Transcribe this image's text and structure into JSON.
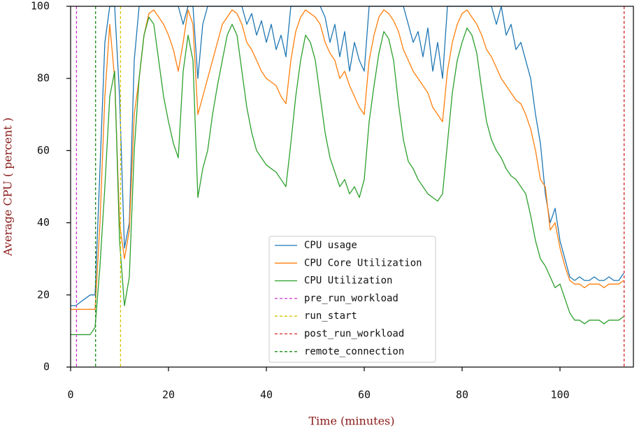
{
  "chart_data": {
    "type": "line",
    "x_label": "Time (minutes)",
    "y_label": "Average CPU ( percent )",
    "xlim": [
      0,
      115
    ],
    "ylim": [
      0,
      100
    ],
    "xticks": [
      0,
      20,
      40,
      60,
      80,
      100
    ],
    "yticks": [
      0,
      20,
      40,
      60,
      80,
      100
    ],
    "legend": "lower center",
    "x": [
      0,
      1,
      2,
      3,
      4,
      5,
      6,
      7,
      8,
      9,
      10,
      11,
      12,
      13,
      14,
      15,
      16,
      17,
      18,
      19,
      20,
      21,
      22,
      23,
      24,
      25,
      26,
      27,
      28,
      29,
      30,
      31,
      32,
      33,
      34,
      35,
      36,
      37,
      38,
      39,
      40,
      41,
      42,
      43,
      44,
      45,
      46,
      47,
      48,
      49,
      50,
      51,
      52,
      53,
      54,
      55,
      56,
      57,
      58,
      59,
      60,
      61,
      62,
      63,
      64,
      65,
      66,
      67,
      68,
      69,
      70,
      71,
      72,
      73,
      74,
      75,
      76,
      77,
      78,
      79,
      80,
      81,
      82,
      83,
      84,
      85,
      86,
      87,
      88,
      89,
      90,
      91,
      92,
      93,
      94,
      95,
      96,
      97,
      98,
      99,
      100,
      101,
      102,
      103,
      104,
      105,
      106,
      107,
      108,
      109,
      110,
      111,
      112,
      113
    ],
    "series": [
      {
        "name": "CPU usage",
        "color": "#1f77b4",
        "values": [
          17,
          17,
          18,
          19,
          20,
          20,
          55,
          90,
          100,
          100,
          75,
          33,
          40,
          85,
          100,
          100,
          100,
          100,
          100,
          100,
          100,
          100,
          100,
          95,
          100,
          100,
          80,
          95,
          100,
          100,
          100,
          100,
          100,
          100,
          100,
          100,
          95,
          98,
          92,
          96,
          90,
          95,
          88,
          92,
          86,
          100,
          100,
          100,
          100,
          100,
          100,
          100,
          97,
          90,
          95,
          86,
          93,
          82,
          90,
          85,
          82,
          100,
          100,
          100,
          100,
          100,
          100,
          100,
          100,
          95,
          90,
          93,
          86,
          94,
          82,
          90,
          80,
          100,
          100,
          100,
          100,
          100,
          100,
          100,
          100,
          100,
          100,
          95,
          100,
          92,
          95,
          88,
          90,
          85,
          80,
          70,
          62,
          48,
          40,
          44,
          35,
          30,
          25,
          24,
          25,
          24,
          24,
          25,
          24,
          24,
          25,
          24,
          24,
          26
        ]
      },
      {
        "name": "CPU Core Utilization",
        "color": "#ff7f0e",
        "values": [
          16,
          16,
          16,
          16,
          16,
          16,
          40,
          75,
          95,
          80,
          40,
          30,
          38,
          70,
          80,
          92,
          98,
          99,
          97,
          95,
          92,
          88,
          82,
          90,
          99,
          95,
          70,
          75,
          80,
          85,
          90,
          95,
          97,
          99,
          98,
          95,
          90,
          88,
          85,
          82,
          80,
          79,
          78,
          75,
          73,
          85,
          93,
          97,
          99,
          98,
          97,
          95,
          90,
          87,
          85,
          80,
          82,
          78,
          75,
          72,
          70,
          85,
          92,
          97,
          99,
          98,
          96,
          93,
          88,
          85,
          82,
          80,
          78,
          76,
          72,
          70,
          68,
          82,
          90,
          95,
          98,
          99,
          97,
          95,
          92,
          88,
          86,
          83,
          80,
          78,
          76,
          74,
          73,
          70,
          66,
          60,
          52,
          50,
          38,
          40,
          33,
          28,
          24,
          23,
          23,
          22,
          23,
          23,
          23,
          22,
          23,
          23,
          23,
          24
        ]
      },
      {
        "name": "CPU Utilization",
        "color": "#2ca02c",
        "values": [
          9,
          9,
          9,
          9,
          9,
          11,
          28,
          50,
          75,
          82,
          35,
          17,
          25,
          60,
          80,
          92,
          97,
          95,
          85,
          75,
          68,
          62,
          58,
          82,
          92,
          85,
          47,
          55,
          60,
          70,
          78,
          85,
          92,
          95,
          92,
          82,
          72,
          65,
          60,
          58,
          56,
          55,
          54,
          52,
          50,
          62,
          75,
          85,
          92,
          90,
          85,
          75,
          65,
          58,
          54,
          50,
          52,
          48,
          50,
          47,
          52,
          68,
          78,
          87,
          93,
          91,
          85,
          73,
          63,
          57,
          55,
          52,
          50,
          48,
          47,
          46,
          48,
          62,
          76,
          85,
          90,
          94,
          92,
          87,
          77,
          68,
          63,
          60,
          58,
          55,
          53,
          52,
          50,
          48,
          42,
          35,
          30,
          28,
          25,
          22,
          23,
          19,
          15,
          13,
          13,
          12,
          13,
          13,
          13,
          12,
          13,
          13,
          13,
          14
        ]
      }
    ],
    "vlines": [
      {
        "name": "pre_run_workload",
        "x": 1.2,
        "color": "#cc33cc"
      },
      {
        "name": "run_start",
        "x": 10.2,
        "color": "#d4c400"
      },
      {
        "name": "post_run_workload",
        "x": 113.1,
        "color": "#d62728"
      },
      {
        "name": "remote_connection",
        "x": 5.1,
        "color": "#1a8a1a"
      }
    ]
  }
}
